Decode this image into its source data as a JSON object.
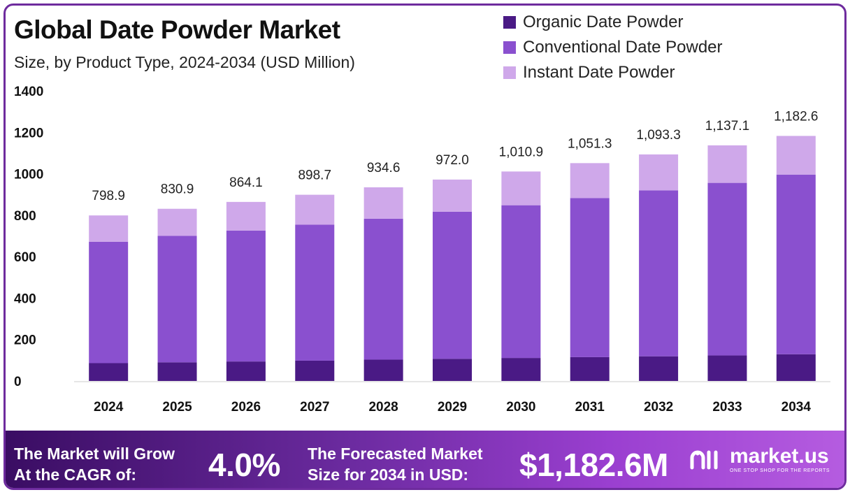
{
  "header": {
    "title": "Global Date Powder Market",
    "subtitle": "Size, by Product Type, 2024-2034 (USD Million)"
  },
  "legend": [
    {
      "label": "Organic Date Powder",
      "color": "#4a1a85"
    },
    {
      "label": "Conventional Date Powder",
      "color": "#8a50cf"
    },
    {
      "label": "Instant Date Powder",
      "color": "#cfa8ea"
    }
  ],
  "chart_data": {
    "type": "bar",
    "stacked": true,
    "title": "Global Date Powder Market",
    "subtitle": "Size, by Product Type, 2024-2034 (USD Million)",
    "xlabel": "",
    "ylabel": "",
    "ylim": [
      0,
      1400
    ],
    "yticks": [
      0,
      200,
      400,
      600,
      800,
      1000,
      1200,
      1400
    ],
    "categories": [
      "2024",
      "2025",
      "2026",
      "2027",
      "2028",
      "2029",
      "2030",
      "2031",
      "2032",
      "2033",
      "2034"
    ],
    "series": [
      {
        "name": "Organic Date Powder",
        "color": "#4a1a85",
        "values": [
          86,
          90,
          94,
          98,
          103,
          107,
          111,
          115,
          119,
          123,
          129
        ]
      },
      {
        "name": "Conventional Date Powder",
        "color": "#8a50cf",
        "values": [
          586,
          610,
          632,
          656,
          680,
          710,
          737,
          768,
          801,
          833,
          867
        ]
      },
      {
        "name": "Instant Date Powder",
        "color": "#cfa8ea",
        "values": [
          126.9,
          130.9,
          138.1,
          144.7,
          151.6,
          155.0,
          162.9,
          168.3,
          173.3,
          181.1,
          186.6
        ]
      }
    ],
    "totals": [
      798.9,
      830.9,
      864.1,
      898.7,
      934.6,
      972.0,
      1010.9,
      1051.3,
      1093.3,
      1137.1,
      1182.6
    ],
    "total_labels": [
      "798.9",
      "830.9",
      "864.1",
      "898.7",
      "934.6",
      "972.0",
      "1,010.9",
      "1,051.3",
      "1,093.3",
      "1,137.1",
      "1,182.6"
    ],
    "grid": false,
    "legend_position": "top-right"
  },
  "footer": {
    "cagr_text_line1": "The Market will Grow",
    "cagr_text_line2": "At the CAGR of:",
    "cagr_value": "4.0%",
    "forecast_text_line1": "The Forecasted Market",
    "forecast_text_line2": "Size for 2034 in USD:",
    "forecast_value": "$1,182.6M",
    "brand_name": "market.us",
    "brand_tagline": "ONE STOP SHOP FOR THE REPORTS"
  }
}
